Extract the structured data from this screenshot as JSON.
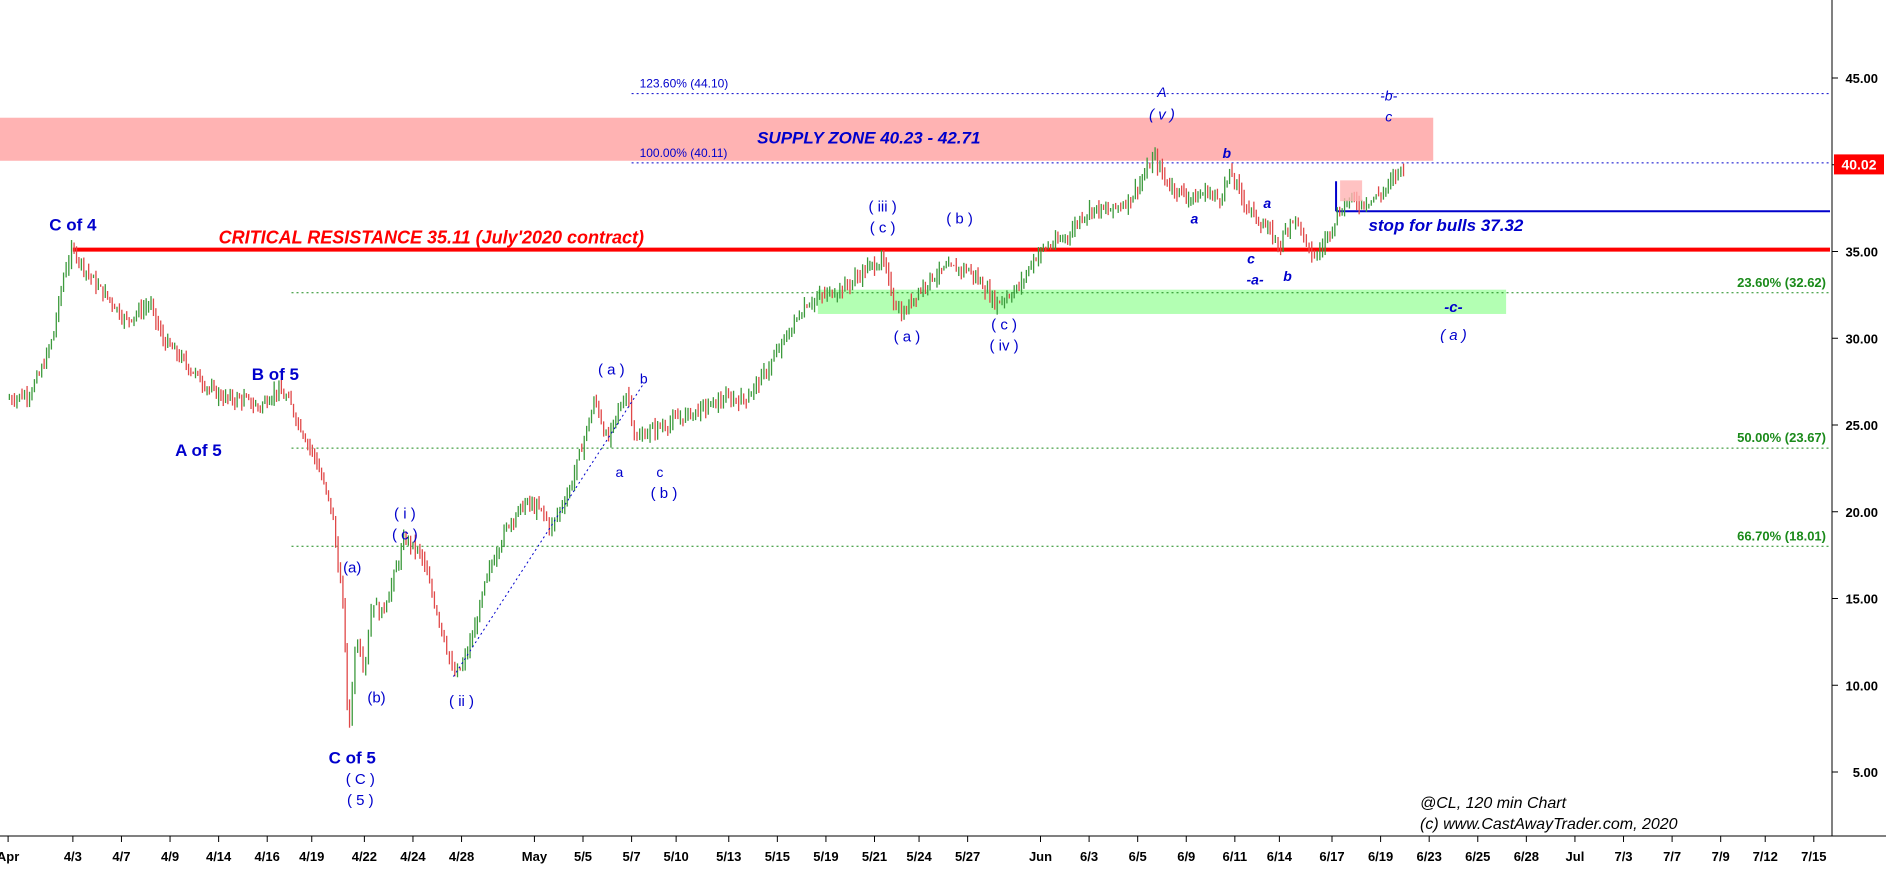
{
  "chart_data": {
    "type": "bar",
    "subtype": "ohlc-price-bars",
    "instrument": "@CL",
    "timeframe": "120 min Chart",
    "watermark": [
      "@CL, 120 min Chart",
      "(c) www.CastAwayTrader.com, 2020"
    ],
    "ylim": [
      0,
      48
    ],
    "y_ticks": [
      5,
      10,
      15,
      20,
      25,
      30,
      35,
      40,
      45
    ],
    "y_tick_labels": [
      "5.00",
      "10.00",
      "15.00",
      "20.00",
      "25.00",
      "30.00",
      "35.00",
      "40.00",
      "45.00"
    ],
    "x_ticks": [
      {
        "label": "Apr",
        "x": -2
      },
      {
        "label": "4/3",
        "x": 14
      },
      {
        "label": "4/7",
        "x": 26
      },
      {
        "label": "4/9",
        "x": 38
      },
      {
        "label": "4/14",
        "x": 50
      },
      {
        "label": "4/16",
        "x": 62
      },
      {
        "label": "4/19",
        "x": 73
      },
      {
        "label": "4/22",
        "x": 86
      },
      {
        "label": "4/24",
        "x": 98
      },
      {
        "label": "4/28",
        "x": 110
      },
      {
        "label": "May",
        "x": 128
      },
      {
        "label": "5/5",
        "x": 140
      },
      {
        "label": "5/7",
        "x": 152
      },
      {
        "label": "5/10",
        "x": 163
      },
      {
        "label": "5/13",
        "x": 176
      },
      {
        "label": "5/15",
        "x": 188
      },
      {
        "label": "5/19",
        "x": 200
      },
      {
        "label": "5/21",
        "x": 212
      },
      {
        "label": "5/24",
        "x": 223
      },
      {
        "label": "5/27",
        "x": 235
      },
      {
        "label": "Jun",
        "x": 253
      },
      {
        "label": "6/3",
        "x": 265
      },
      {
        "label": "6/5",
        "x": 277
      },
      {
        "label": "6/9",
        "x": 289
      },
      {
        "label": "6/11",
        "x": 301
      },
      {
        "label": "6/14",
        "x": 312
      },
      {
        "label": "6/17",
        "x": 325
      },
      {
        "label": "6/19",
        "x": 337
      },
      {
        "label": "6/23",
        "x": 349
      },
      {
        "label": "6/25",
        "x": 361
      },
      {
        "label": "6/28",
        "x": 373
      },
      {
        "label": "Jul",
        "x": 385
      },
      {
        "label": "7/3",
        "x": 397
      },
      {
        "label": "7/7",
        "x": 409
      },
      {
        "label": "7/9",
        "x": 421
      },
      {
        "label": "7/12",
        "x": 432
      },
      {
        "label": "7/15",
        "x": 444
      }
    ],
    "price_path": [
      [
        -2,
        26.5
      ],
      [
        3,
        26.8
      ],
      [
        6,
        28
      ],
      [
        9,
        30
      ],
      [
        12,
        34
      ],
      [
        14,
        35.1
      ],
      [
        17,
        34
      ],
      [
        20,
        33
      ],
      [
        24,
        32
      ],
      [
        27,
        31
      ],
      [
        30,
        31.5
      ],
      [
        33,
        32
      ],
      [
        36,
        30
      ],
      [
        40,
        29
      ],
      [
        44,
        28
      ],
      [
        48,
        27
      ],
      [
        52,
        26.5
      ],
      [
        56,
        26.5
      ],
      [
        60,
        26
      ],
      [
        64,
        27
      ],
      [
        67,
        26.5
      ],
      [
        70,
        25
      ],
      [
        74,
        23
      ],
      [
        78,
        20
      ],
      [
        81,
        14
      ],
      [
        82,
        7
      ],
      [
        84,
        13
      ],
      [
        86,
        11
      ],
      [
        88,
        15
      ],
      [
        90,
        14
      ],
      [
        93,
        16
      ],
      [
        96,
        18.5
      ],
      [
        100,
        17.5
      ],
      [
        103,
        15
      ],
      [
        106,
        12.5
      ],
      [
        108,
        10.5
      ],
      [
        110,
        11
      ],
      [
        113,
        13
      ],
      [
        116,
        16
      ],
      [
        119,
        18
      ],
      [
        122,
        19.5
      ],
      [
        126,
        20.5
      ],
      [
        130,
        20
      ],
      [
        132,
        19
      ],
      [
        134,
        20
      ],
      [
        137,
        21.5
      ],
      [
        140,
        24
      ],
      [
        143,
        26.5
      ],
      [
        146,
        24
      ],
      [
        149,
        26
      ],
      [
        151,
        27
      ],
      [
        153,
        24
      ],
      [
        155,
        24.5
      ],
      [
        160,
        25
      ],
      [
        165,
        25.5
      ],
      [
        170,
        26
      ],
      [
        175,
        26.5
      ],
      [
        180,
        26.5
      ],
      [
        185,
        28
      ],
      [
        190,
        30
      ],
      [
        195,
        32
      ],
      [
        200,
        32.5
      ],
      [
        205,
        33
      ],
      [
        210,
        34
      ],
      [
        214,
        34.5
      ],
      [
        217,
        32
      ],
      [
        219,
        31.3
      ],
      [
        222,
        32.5
      ],
      [
        226,
        33.5
      ],
      [
        230,
        34
      ],
      [
        235,
        34
      ],
      [
        239,
        33
      ],
      [
        242,
        32
      ],
      [
        245,
        32.5
      ],
      [
        248,
        33
      ],
      [
        251,
        34.5
      ],
      [
        254,
        35.2
      ],
      [
        257,
        35.5
      ],
      [
        260,
        36
      ],
      [
        263,
        37
      ],
      [
        266,
        37.5
      ],
      [
        270,
        37.3
      ],
      [
        275,
        38
      ],
      [
        279,
        39.5
      ],
      [
        281,
        40.5
      ],
      [
        284,
        39
      ],
      [
        287,
        38.5
      ],
      [
        291,
        38
      ],
      [
        294,
        38.5
      ],
      [
        297,
        38
      ],
      [
        300,
        39.5
      ],
      [
        303,
        38
      ],
      [
        306,
        37
      ],
      [
        310,
        36
      ],
      [
        312,
        35.3
      ],
      [
        315,
        37
      ],
      [
        317,
        36.5
      ],
      [
        319,
        35
      ],
      [
        321,
        34.7
      ],
      [
        323,
        35.5
      ],
      [
        326,
        37
      ],
      [
        329,
        38
      ],
      [
        332,
        37.8
      ],
      [
        335,
        38
      ],
      [
        338,
        38.5
      ],
      [
        341,
        39.5
      ],
      [
        343,
        40.1
      ]
    ],
    "levels": [
      {
        "label": "123.60% (44.10)",
        "value": 44.1,
        "color": "#0000cc",
        "style": "dotted"
      },
      {
        "label": "100.00% (40.11)",
        "value": 40.11,
        "color": "#0000cc",
        "style": "dotted"
      },
      {
        "label": "23.60% (32.62)",
        "value": 32.62,
        "color": "#1a8a1a",
        "style": "dotted"
      },
      {
        "label": "50.00% (23.67)",
        "value": 23.67,
        "color": "#1a8a1a",
        "style": "dotted"
      },
      {
        "label": "66.70% (18.01)",
        "value": 18.01,
        "color": "#1a8a1a",
        "style": "dotted"
      }
    ],
    "critical_resistance": {
      "label": "CRITICAL RESISTANCE 35.11 (July'2020 contract)",
      "value": 35.11,
      "color": "#ff0000",
      "x_start": 14
    },
    "stop_line": {
      "label": "stop for bulls 37.32",
      "value": 37.32,
      "color": "#0000cc",
      "x_start": 326
    },
    "supply_zone": {
      "label": "SUPPLY ZONE 40.23 -  42.71",
      "low": 40.23,
      "high": 42.71,
      "color": "#ffb3b3",
      "x_end": 350
    },
    "support_zone": {
      "low": 31.4,
      "high": 32.8,
      "color": "#b3ffb3",
      "x_start": 198,
      "x_end": 368
    },
    "last_price": {
      "label": "40.02",
      "value": 40.02,
      "color": "#ff0000"
    },
    "wave_labels": [
      {
        "text": "C of 4",
        "x": 14,
        "y": 36.2,
        "size": 17,
        "bold": true
      },
      {
        "text": "B of 5",
        "x": 64,
        "y": 27.6,
        "size": 17,
        "bold": true
      },
      {
        "text": "A of 5",
        "x": 45,
        "y": 23.2,
        "size": 17,
        "bold": true
      },
      {
        "text": "C of 5",
        "x": 83,
        "y": 5.5,
        "size": 17,
        "bold": true
      },
      {
        "text": "( C )",
        "x": 85,
        "y": 4.3,
        "size": 15,
        "bold": false
      },
      {
        "text": "( 5 )",
        "x": 85,
        "y": 3.1,
        "size": 15,
        "bold": false
      },
      {
        "text": "(a)",
        "x": 83,
        "y": 16.5,
        "size": 15,
        "bold": false
      },
      {
        "text": "(b)",
        "x": 89,
        "y": 9.0,
        "size": 15,
        "bold": false
      },
      {
        "text": "( i )",
        "x": 96,
        "y": 19.6,
        "size": 15,
        "bold": false
      },
      {
        "text": "( c )",
        "x": 96,
        "y": 18.4,
        "size": 15,
        "bold": false
      },
      {
        "text": "( ii )",
        "x": 110,
        "y": 8.8,
        "size": 15,
        "bold": false
      },
      {
        "text": "( a )",
        "x": 147,
        "y": 27.9,
        "size": 15,
        "bold": false
      },
      {
        "text": "b",
        "x": 155,
        "y": 27.4,
        "size": 14,
        "bold": false
      },
      {
        "text": "a",
        "x": 149,
        "y": 22.0,
        "size": 14,
        "bold": false
      },
      {
        "text": "c",
        "x": 159,
        "y": 22.0,
        "size": 14,
        "bold": false
      },
      {
        "text": "( b )",
        "x": 160,
        "y": 20.8,
        "size": 15,
        "bold": false
      },
      {
        "text": "( iii )",
        "x": 214,
        "y": 37.3,
        "size": 15,
        "bold": false
      },
      {
        "text": "( c )",
        "x": 214,
        "y": 36.1,
        "size": 15,
        "bold": false
      },
      {
        "text": "( a )",
        "x": 220,
        "y": 29.8,
        "size": 15,
        "bold": false
      },
      {
        "text": "( b )",
        "x": 233,
        "y": 36.6,
        "size": 15,
        "bold": false
      },
      {
        "text": "( c )",
        "x": 244,
        "y": 30.5,
        "size": 15,
        "bold": false
      },
      {
        "text": "( iv )",
        "x": 244,
        "y": 29.3,
        "size": 15,
        "bold": false
      },
      {
        "text": "A",
        "x": 283,
        "y": 43.9,
        "size": 14,
        "bold": false,
        "italic": true
      },
      {
        "text": "( v )",
        "x": 283,
        "y": 42.6,
        "size": 15,
        "bold": false,
        "italic": true
      },
      {
        "text": "a",
        "x": 291,
        "y": 36.6,
        "size": 14,
        "bold": true,
        "italic": true
      },
      {
        "text": "b",
        "x": 299,
        "y": 40.4,
        "size": 14,
        "bold": true,
        "italic": true
      },
      {
        "text": "a",
        "x": 309,
        "y": 37.5,
        "size": 14,
        "bold": true,
        "italic": true
      },
      {
        "text": "c",
        "x": 305,
        "y": 34.3,
        "size": 14,
        "bold": true,
        "italic": true
      },
      {
        "text": "-a-",
        "x": 306,
        "y": 33.1,
        "size": 14,
        "bold": true,
        "italic": true
      },
      {
        "text": "b",
        "x": 314,
        "y": 33.3,
        "size": 14,
        "bold": true,
        "italic": true
      },
      {
        "text": "-b-",
        "x": 339,
        "y": 43.7,
        "size": 14,
        "bold": false,
        "italic": true
      },
      {
        "text": "c",
        "x": 339,
        "y": 42.5,
        "size": 14,
        "bold": false,
        "italic": true
      },
      {
        "text": "-c-",
        "x": 355,
        "y": 31.5,
        "size": 15,
        "bold": true,
        "italic": true
      },
      {
        "text": "( a )",
        "x": 355,
        "y": 29.9,
        "size": 15,
        "bold": false,
        "italic": true
      }
    ],
    "trendline": [
      [
        108,
        10.5
      ],
      [
        155,
        27.4
      ]
    ]
  }
}
